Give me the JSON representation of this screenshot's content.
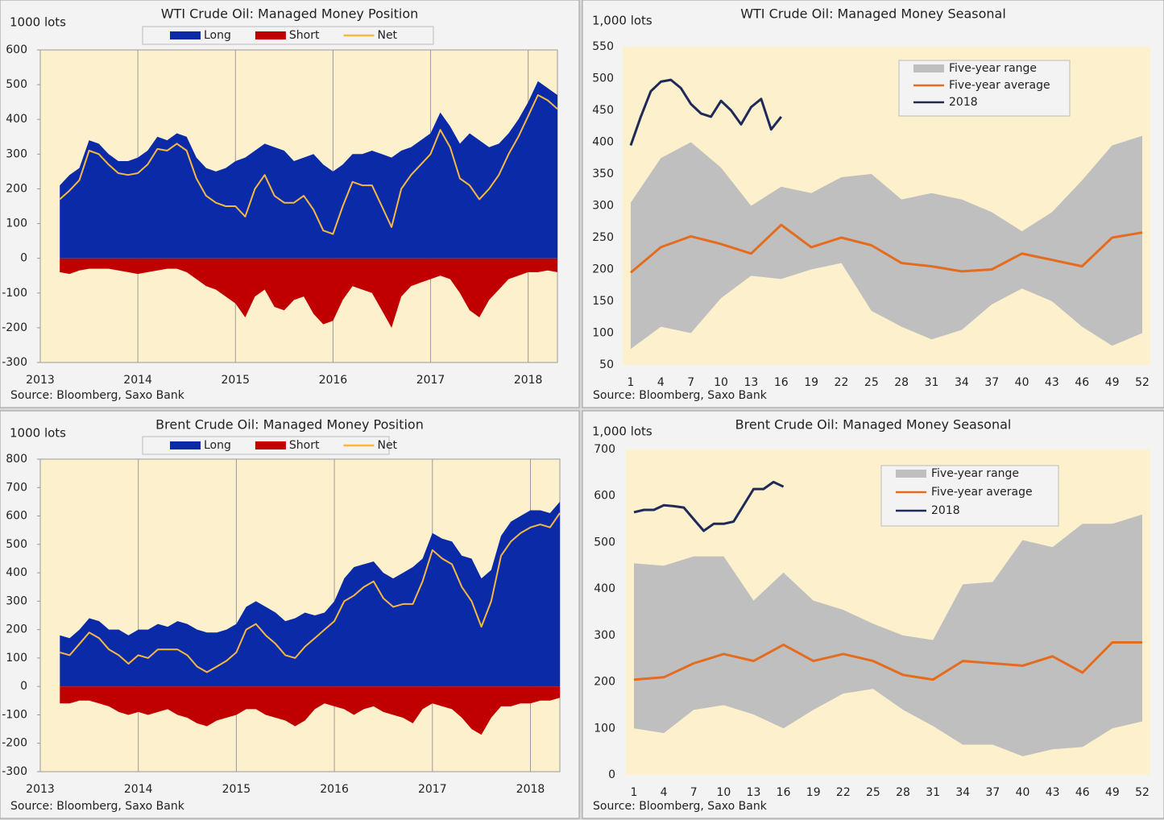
{
  "chart_data": [
    {
      "type": "area",
      "title": "WTI Crude Oil: Managed Money Position",
      "y_label": "1000 lots",
      "source": "Source: Bloomberg, Saxo Bank",
      "legend": "top",
      "grid": "x",
      "x": [
        2013.2,
        2013.3,
        2013.4,
        2013.5,
        2013.6,
        2013.7,
        2013.8,
        2013.9,
        2014.0,
        2014.1,
        2014.2,
        2014.3,
        2014.4,
        2014.5,
        2014.6,
        2014.7,
        2014.8,
        2014.9,
        2015.0,
        2015.1,
        2015.2,
        2015.3,
        2015.4,
        2015.5,
        2015.6,
        2015.7,
        2015.8,
        2015.9,
        2016.0,
        2016.1,
        2016.2,
        2016.3,
        2016.4,
        2016.5,
        2016.6,
        2016.7,
        2016.8,
        2016.9,
        2017.0,
        2017.1,
        2017.2,
        2017.3,
        2017.4,
        2017.5,
        2017.6,
        2017.7,
        2017.8,
        2017.9,
        2018.0,
        2018.1,
        2018.2,
        2018.3
      ],
      "xlim": [
        2013,
        2018.3
      ],
      "xticks": [
        2013,
        2014,
        2015,
        2016,
        2017,
        2018
      ],
      "ylim": [
        -300,
        600
      ],
      "yticks": [
        -300,
        -200,
        -100,
        0,
        100,
        200,
        300,
        400,
        500,
        600
      ],
      "series": [
        {
          "name": "Long",
          "color": "#0a2aa8",
          "style": "area",
          "values": [
            210,
            240,
            260,
            340,
            330,
            300,
            280,
            280,
            290,
            310,
            350,
            340,
            360,
            350,
            290,
            260,
            250,
            260,
            280,
            290,
            310,
            330,
            320,
            310,
            280,
            290,
            300,
            270,
            250,
            270,
            300,
            300,
            310,
            300,
            290,
            310,
            320,
            340,
            360,
            420,
            380,
            330,
            360,
            340,
            320,
            330,
            360,
            400,
            450,
            510,
            490,
            470
          ]
        },
        {
          "name": "Short",
          "color": "#c00000",
          "style": "area",
          "values": [
            -40,
            -45,
            -35,
            -30,
            -30,
            -30,
            -35,
            -40,
            -45,
            -40,
            -35,
            -30,
            -30,
            -40,
            -60,
            -80,
            -90,
            -110,
            -130,
            -170,
            -110,
            -90,
            -140,
            -150,
            -120,
            -110,
            -160,
            -190,
            -180,
            -120,
            -80,
            -90,
            -100,
            -150,
            -200,
            -110,
            -80,
            -70,
            -60,
            -50,
            -60,
            -100,
            -150,
            -170,
            -120,
            -90,
            -60,
            -50,
            -40,
            -40,
            -35,
            -40
          ]
        },
        {
          "name": "Net",
          "color": "#f5b942",
          "style": "line",
          "values": [
            170,
            195,
            225,
            310,
            300,
            270,
            245,
            240,
            245,
            270,
            315,
            310,
            330,
            310,
            230,
            180,
            160,
            150,
            150,
            120,
            200,
            240,
            180,
            160,
            160,
            180,
            140,
            80,
            70,
            150,
            220,
            210,
            210,
            150,
            90,
            200,
            240,
            270,
            300,
            370,
            320,
            230,
            210,
            170,
            200,
            240,
            300,
            350,
            410,
            470,
            455,
            430
          ]
        }
      ]
    },
    {
      "type": "band",
      "title": "WTI Crude Oil: Managed Money Seasonal",
      "y_label": "1,000 lots",
      "source": "Source: Bloomberg, Saxo Bank",
      "legend": "upper right",
      "grid": false,
      "xlim": [
        1,
        52
      ],
      "xticks": [
        1,
        4,
        7,
        10,
        13,
        16,
        19,
        22,
        25,
        28,
        31,
        34,
        37,
        40,
        43,
        46,
        49,
        52
      ],
      "ylim": [
        50,
        550
      ],
      "yticks": [
        50,
        100,
        150,
        200,
        250,
        300,
        350,
        400,
        450,
        500,
        550
      ],
      "series": [
        {
          "name": "Five-year range",
          "color": "#bfbfbf",
          "style": "range",
          "x": [
            1,
            4,
            7,
            10,
            13,
            16,
            19,
            22,
            25,
            28,
            31,
            34,
            37,
            40,
            43,
            46,
            49,
            52
          ],
          "high": [
            305,
            375,
            400,
            360,
            300,
            330,
            320,
            345,
            350,
            310,
            320,
            310,
            290,
            260,
            290,
            340,
            395,
            410
          ],
          "low": [
            75,
            110,
            100,
            155,
            190,
            185,
            200,
            210,
            135,
            110,
            90,
            105,
            145,
            170,
            150,
            110,
            80,
            100
          ]
        },
        {
          "name": "Five-year average",
          "color": "#e46c1f",
          "style": "line",
          "x": [
            1,
            4,
            7,
            10,
            13,
            16,
            19,
            22,
            25,
            28,
            31,
            34,
            37,
            40,
            43,
            46,
            49,
            52
          ],
          "values": [
            195,
            235,
            252,
            240,
            225,
            270,
            235,
            250,
            238,
            210,
            205,
            197,
            200,
            225,
            215,
            205,
            250,
            258
          ]
        },
        {
          "name": "2018",
          "color": "#1f2a5a",
          "style": "line",
          "x": [
            1,
            2,
            3,
            4,
            5,
            6,
            7,
            8,
            9,
            10,
            11,
            12,
            13,
            14,
            15,
            16
          ],
          "values": [
            395,
            440,
            480,
            495,
            498,
            485,
            460,
            445,
            440,
            465,
            450,
            428,
            455,
            468,
            420,
            440
          ]
        }
      ]
    },
    {
      "type": "area",
      "title": "Brent Crude Oil: Managed Money Position",
      "y_label": "1000 lots",
      "source": "Source: Bloomberg, Saxo Bank",
      "legend": "top",
      "grid": "x",
      "x": [
        2013.2,
        2013.3,
        2013.4,
        2013.5,
        2013.6,
        2013.7,
        2013.8,
        2013.9,
        2014.0,
        2014.1,
        2014.2,
        2014.3,
        2014.4,
        2014.5,
        2014.6,
        2014.7,
        2014.8,
        2014.9,
        2015.0,
        2015.1,
        2015.2,
        2015.3,
        2015.4,
        2015.5,
        2015.6,
        2015.7,
        2015.8,
        2015.9,
        2016.0,
        2016.1,
        2016.2,
        2016.3,
        2016.4,
        2016.5,
        2016.6,
        2016.7,
        2016.8,
        2016.9,
        2017.0,
        2017.1,
        2017.2,
        2017.3,
        2017.4,
        2017.5,
        2017.6,
        2017.7,
        2017.8,
        2017.9,
        2018.0,
        2018.1,
        2018.2,
        2018.3
      ],
      "xlim": [
        2013,
        2018.3
      ],
      "xticks": [
        2013,
        2014,
        2015,
        2016,
        2017,
        2018
      ],
      "ylim": [
        -300,
        800
      ],
      "yticks": [
        -300,
        -200,
        -100,
        0,
        100,
        200,
        300,
        400,
        500,
        600,
        700,
        800
      ],
      "series": [
        {
          "name": "Long",
          "color": "#0a2aa8",
          "style": "area",
          "values": [
            180,
            170,
            200,
            240,
            230,
            200,
            200,
            180,
            200,
            200,
            220,
            210,
            230,
            220,
            200,
            190,
            190,
            200,
            220,
            280,
            300,
            280,
            260,
            230,
            240,
            260,
            250,
            260,
            300,
            380,
            420,
            430,
            440,
            400,
            380,
            400,
            420,
            450,
            540,
            520,
            510,
            460,
            450,
            380,
            410,
            530,
            580,
            600,
            620,
            620,
            610,
            650
          ]
        },
        {
          "name": "Short",
          "color": "#c00000",
          "style": "area",
          "values": [
            -60,
            -60,
            -50,
            -50,
            -60,
            -70,
            -90,
            -100,
            -90,
            -100,
            -90,
            -80,
            -100,
            -110,
            -130,
            -140,
            -120,
            -110,
            -100,
            -80,
            -80,
            -100,
            -110,
            -120,
            -140,
            -120,
            -80,
            -60,
            -70,
            -80,
            -100,
            -80,
            -70,
            -90,
            -100,
            -110,
            -130,
            -80,
            -60,
            -70,
            -80,
            -110,
            -150,
            -170,
            -110,
            -70,
            -70,
            -60,
            -60,
            -50,
            -50,
            -40
          ]
        },
        {
          "name": "Net",
          "color": "#f5b942",
          "style": "line",
          "values": [
            120,
            110,
            150,
            190,
            170,
            130,
            110,
            80,
            110,
            100,
            130,
            130,
            130,
            110,
            70,
            50,
            70,
            90,
            120,
            200,
            220,
            180,
            150,
            110,
            100,
            140,
            170,
            200,
            230,
            300,
            320,
            350,
            370,
            310,
            280,
            290,
            290,
            370,
            480,
            450,
            430,
            350,
            300,
            210,
            300,
            460,
            510,
            540,
            560,
            570,
            560,
            610
          ]
        }
      ]
    },
    {
      "type": "band",
      "title": "Brent Crude Oil: Managed Money Seasonal",
      "y_label": "1,000 lots",
      "source": "Source: Bloomberg, Saxo Bank",
      "legend": "upper right",
      "grid": false,
      "xlim": [
        1,
        52
      ],
      "xticks": [
        1,
        4,
        7,
        10,
        13,
        16,
        19,
        22,
        25,
        28,
        31,
        34,
        37,
        40,
        43,
        46,
        49,
        52
      ],
      "ylim": [
        0,
        700
      ],
      "yticks": [
        0,
        100,
        200,
        300,
        400,
        500,
        600,
        700
      ],
      "series": [
        {
          "name": "Five-year range",
          "color": "#bfbfbf",
          "style": "range",
          "x": [
            1,
            4,
            7,
            10,
            13,
            16,
            19,
            22,
            25,
            28,
            31,
            34,
            37,
            40,
            43,
            46,
            49,
            52
          ],
          "high": [
            455,
            450,
            470,
            470,
            375,
            435,
            375,
            355,
            325,
            300,
            290,
            410,
            415,
            505,
            490,
            540,
            540,
            560
          ],
          "low": [
            100,
            90,
            140,
            150,
            130,
            100,
            140,
            175,
            185,
            140,
            105,
            65,
            65,
            40,
            55,
            60,
            100,
            115
          ]
        },
        {
          "name": "Five-year average",
          "color": "#e46c1f",
          "style": "line",
          "x": [
            1,
            4,
            7,
            10,
            13,
            16,
            19,
            22,
            25,
            28,
            31,
            34,
            37,
            40,
            43,
            46,
            49,
            52
          ],
          "values": [
            205,
            210,
            240,
            260,
            245,
            280,
            245,
            260,
            245,
            215,
            205,
            245,
            240,
            235,
            255,
            220,
            285,
            285
          ]
        },
        {
          "name": "2018",
          "color": "#1f2a5a",
          "style": "line",
          "x": [
            1,
            2,
            3,
            4,
            5,
            6,
            7,
            8,
            9,
            10,
            11,
            12,
            13,
            14,
            15,
            16
          ],
          "values": [
            565,
            570,
            570,
            580,
            578,
            575,
            550,
            525,
            540,
            540,
            545,
            580,
            615,
            615,
            630,
            620
          ]
        }
      ]
    }
  ]
}
